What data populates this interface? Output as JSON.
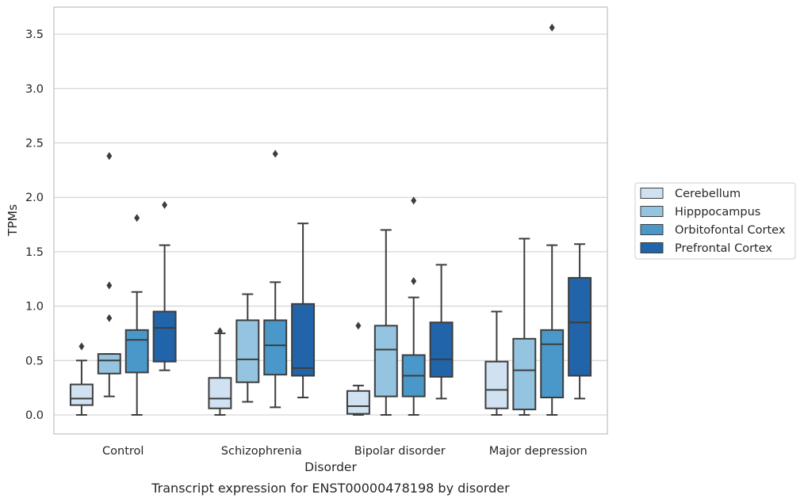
{
  "chart_data": {
    "type": "box",
    "title": "",
    "caption": "Transcript expression for ENST00000478198 by disorder",
    "xlabel": "Disorder",
    "ylabel": "TPMs",
    "ylim": [
      -0.17,
      3.75
    ],
    "yticks": [
      0.0,
      0.5,
      1.0,
      1.5,
      2.0,
      2.5,
      3.0,
      3.5
    ],
    "ytick_labels": [
      "0.0",
      "0.5",
      "1.0",
      "1.5",
      "2.0",
      "2.5",
      "3.0",
      "3.5"
    ],
    "grid": "horizontal",
    "legend_position": "right",
    "categories": [
      "Control",
      "Schizophrenia",
      "Bipolar disorder",
      "Major depression"
    ],
    "series": [
      {
        "name": "Cerebellum",
        "color": "#d0e1f2",
        "boxes": [
          {
            "whislo": 0.0,
            "q1": 0.09,
            "med": 0.15,
            "q3": 0.28,
            "whishi": 0.5,
            "fliers": [
              0.63
            ]
          },
          {
            "whislo": 0.0,
            "q1": 0.06,
            "med": 0.15,
            "q3": 0.34,
            "whishi": 0.75,
            "fliers": [
              0.77
            ]
          },
          {
            "whislo": 0.0,
            "q1": 0.01,
            "med": 0.08,
            "q3": 0.22,
            "whishi": 0.27,
            "fliers": [
              0.82
            ]
          },
          {
            "whislo": 0.0,
            "q1": 0.06,
            "med": 0.23,
            "q3": 0.49,
            "whishi": 0.95,
            "fliers": []
          }
        ]
      },
      {
        "name": "Hipppocampus",
        "color": "#94c4df",
        "boxes": [
          {
            "whislo": 0.17,
            "q1": 0.38,
            "med": 0.5,
            "q3": 0.56,
            "whishi": 0.56,
            "fliers": [
              0.89,
              1.19,
              2.38
            ]
          },
          {
            "whislo": 0.12,
            "q1": 0.3,
            "med": 0.51,
            "q3": 0.87,
            "whishi": 1.11,
            "fliers": []
          },
          {
            "whislo": 0.0,
            "q1": 0.17,
            "med": 0.6,
            "q3": 0.82,
            "whishi": 1.7,
            "fliers": []
          },
          {
            "whislo": 0.0,
            "q1": 0.05,
            "med": 0.41,
            "q3": 0.7,
            "whishi": 1.62,
            "fliers": []
          }
        ]
      },
      {
        "name": "Orbitofontal Cortex",
        "color": "#4a98c9",
        "boxes": [
          {
            "whislo": 0.0,
            "q1": 0.39,
            "med": 0.69,
            "q3": 0.78,
            "whishi": 1.13,
            "fliers": [
              1.81
            ]
          },
          {
            "whislo": 0.07,
            "q1": 0.37,
            "med": 0.64,
            "q3": 0.87,
            "whishi": 1.22,
            "fliers": [
              2.4
            ]
          },
          {
            "whislo": 0.0,
            "q1": 0.17,
            "med": 0.36,
            "q3": 0.55,
            "whishi": 1.08,
            "fliers": [
              1.23,
              1.97
            ]
          },
          {
            "whislo": 0.0,
            "q1": 0.16,
            "med": 0.65,
            "q3": 0.78,
            "whishi": 1.56,
            "fliers": [
              3.56
            ]
          }
        ]
      },
      {
        "name": "Prefrontal Cortex",
        "color": "#2264a9",
        "boxes": [
          {
            "whislo": 0.41,
            "q1": 0.49,
            "med": 0.8,
            "q3": 0.95,
            "whishi": 1.56,
            "fliers": [
              1.93
            ]
          },
          {
            "whislo": 0.16,
            "q1": 0.36,
            "med": 0.43,
            "q3": 1.02,
            "whishi": 1.76,
            "fliers": []
          },
          {
            "whislo": 0.15,
            "q1": 0.35,
            "med": 0.51,
            "q3": 0.85,
            "whishi": 1.38,
            "fliers": []
          },
          {
            "whislo": 0.15,
            "q1": 0.36,
            "med": 0.85,
            "q3": 1.26,
            "whishi": 1.57,
            "fliers": []
          }
        ]
      }
    ]
  }
}
